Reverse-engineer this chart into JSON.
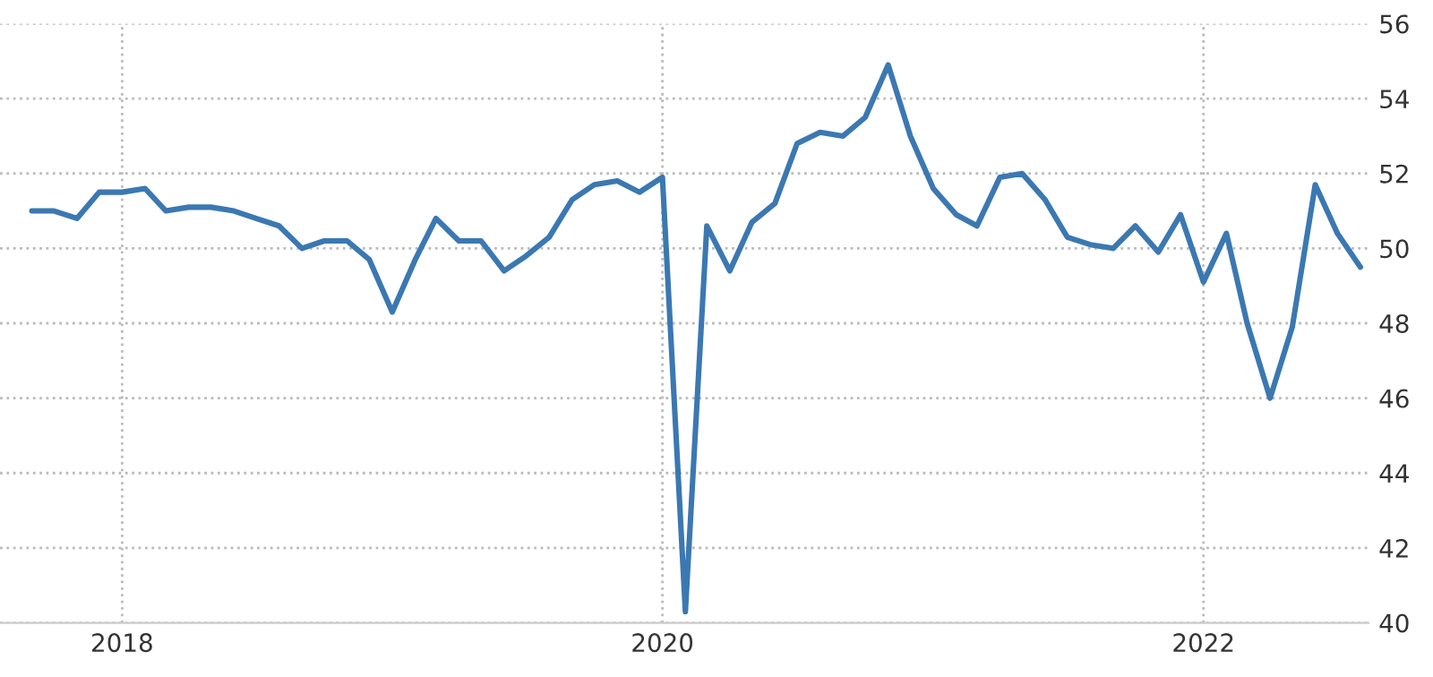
{
  "chart_data": {
    "type": "line",
    "x": [
      "2017-09",
      "2017-10",
      "2017-11",
      "2017-12",
      "2018-01",
      "2018-02",
      "2018-03",
      "2018-04",
      "2018-05",
      "2018-06",
      "2018-07",
      "2018-08",
      "2018-09",
      "2018-10",
      "2018-11",
      "2018-12",
      "2019-01",
      "2019-02",
      "2019-03",
      "2019-04",
      "2019-05",
      "2019-06",
      "2019-07",
      "2019-08",
      "2019-09",
      "2019-10",
      "2019-11",
      "2019-12",
      "2020-01",
      "2020-02",
      "2020-03",
      "2020-04",
      "2020-05",
      "2020-06",
      "2020-07",
      "2020-08",
      "2020-09",
      "2020-10",
      "2020-11",
      "2020-12",
      "2021-01",
      "2021-02",
      "2021-03",
      "2021-04",
      "2021-05",
      "2021-06",
      "2021-07",
      "2021-08",
      "2021-09",
      "2021-10",
      "2021-11",
      "2021-12",
      "2022-01",
      "2022-02",
      "2022-03",
      "2022-04",
      "2022-05",
      "2022-06",
      "2022-07",
      "2022-08"
    ],
    "series": [
      {
        "color": "#3b78b2",
        "values": [
          51.0,
          51.0,
          50.8,
          51.5,
          51.5,
          51.6,
          51.0,
          51.1,
          51.1,
          51.0,
          50.8,
          50.6,
          50.0,
          50.2,
          50.2,
          49.7,
          48.3,
          49.7,
          50.8,
          50.2,
          50.2,
          49.4,
          49.8,
          50.3,
          51.3,
          51.7,
          51.8,
          51.5,
          51.9,
          40.3,
          50.6,
          49.4,
          50.7,
          51.2,
          52.8,
          53.1,
          53.0,
          53.5,
          54.9,
          53.0,
          51.6,
          50.9,
          50.6,
          51.9,
          52.0,
          51.3,
          50.3,
          50.1,
          50.0,
          50.6,
          49.9,
          50.9,
          49.1,
          50.4,
          48.0,
          46.0,
          47.9,
          51.7,
          50.4,
          49.5
        ]
      }
    ],
    "xlim": [
      "2017-07-20",
      "2022-08-12"
    ],
    "xticks": [
      {
        "value": "2018-01-01",
        "label": "2018"
      },
      {
        "value": "2020-01-01",
        "label": "2020"
      },
      {
        "value": "2022-01-01",
        "label": "2022"
      }
    ],
    "ylim": [
      40,
      56
    ],
    "yticks": [
      40,
      42,
      44,
      46,
      48,
      50,
      52,
      54,
      56
    ],
    "grid": true,
    "line_style": "solid",
    "marker": "none"
  }
}
